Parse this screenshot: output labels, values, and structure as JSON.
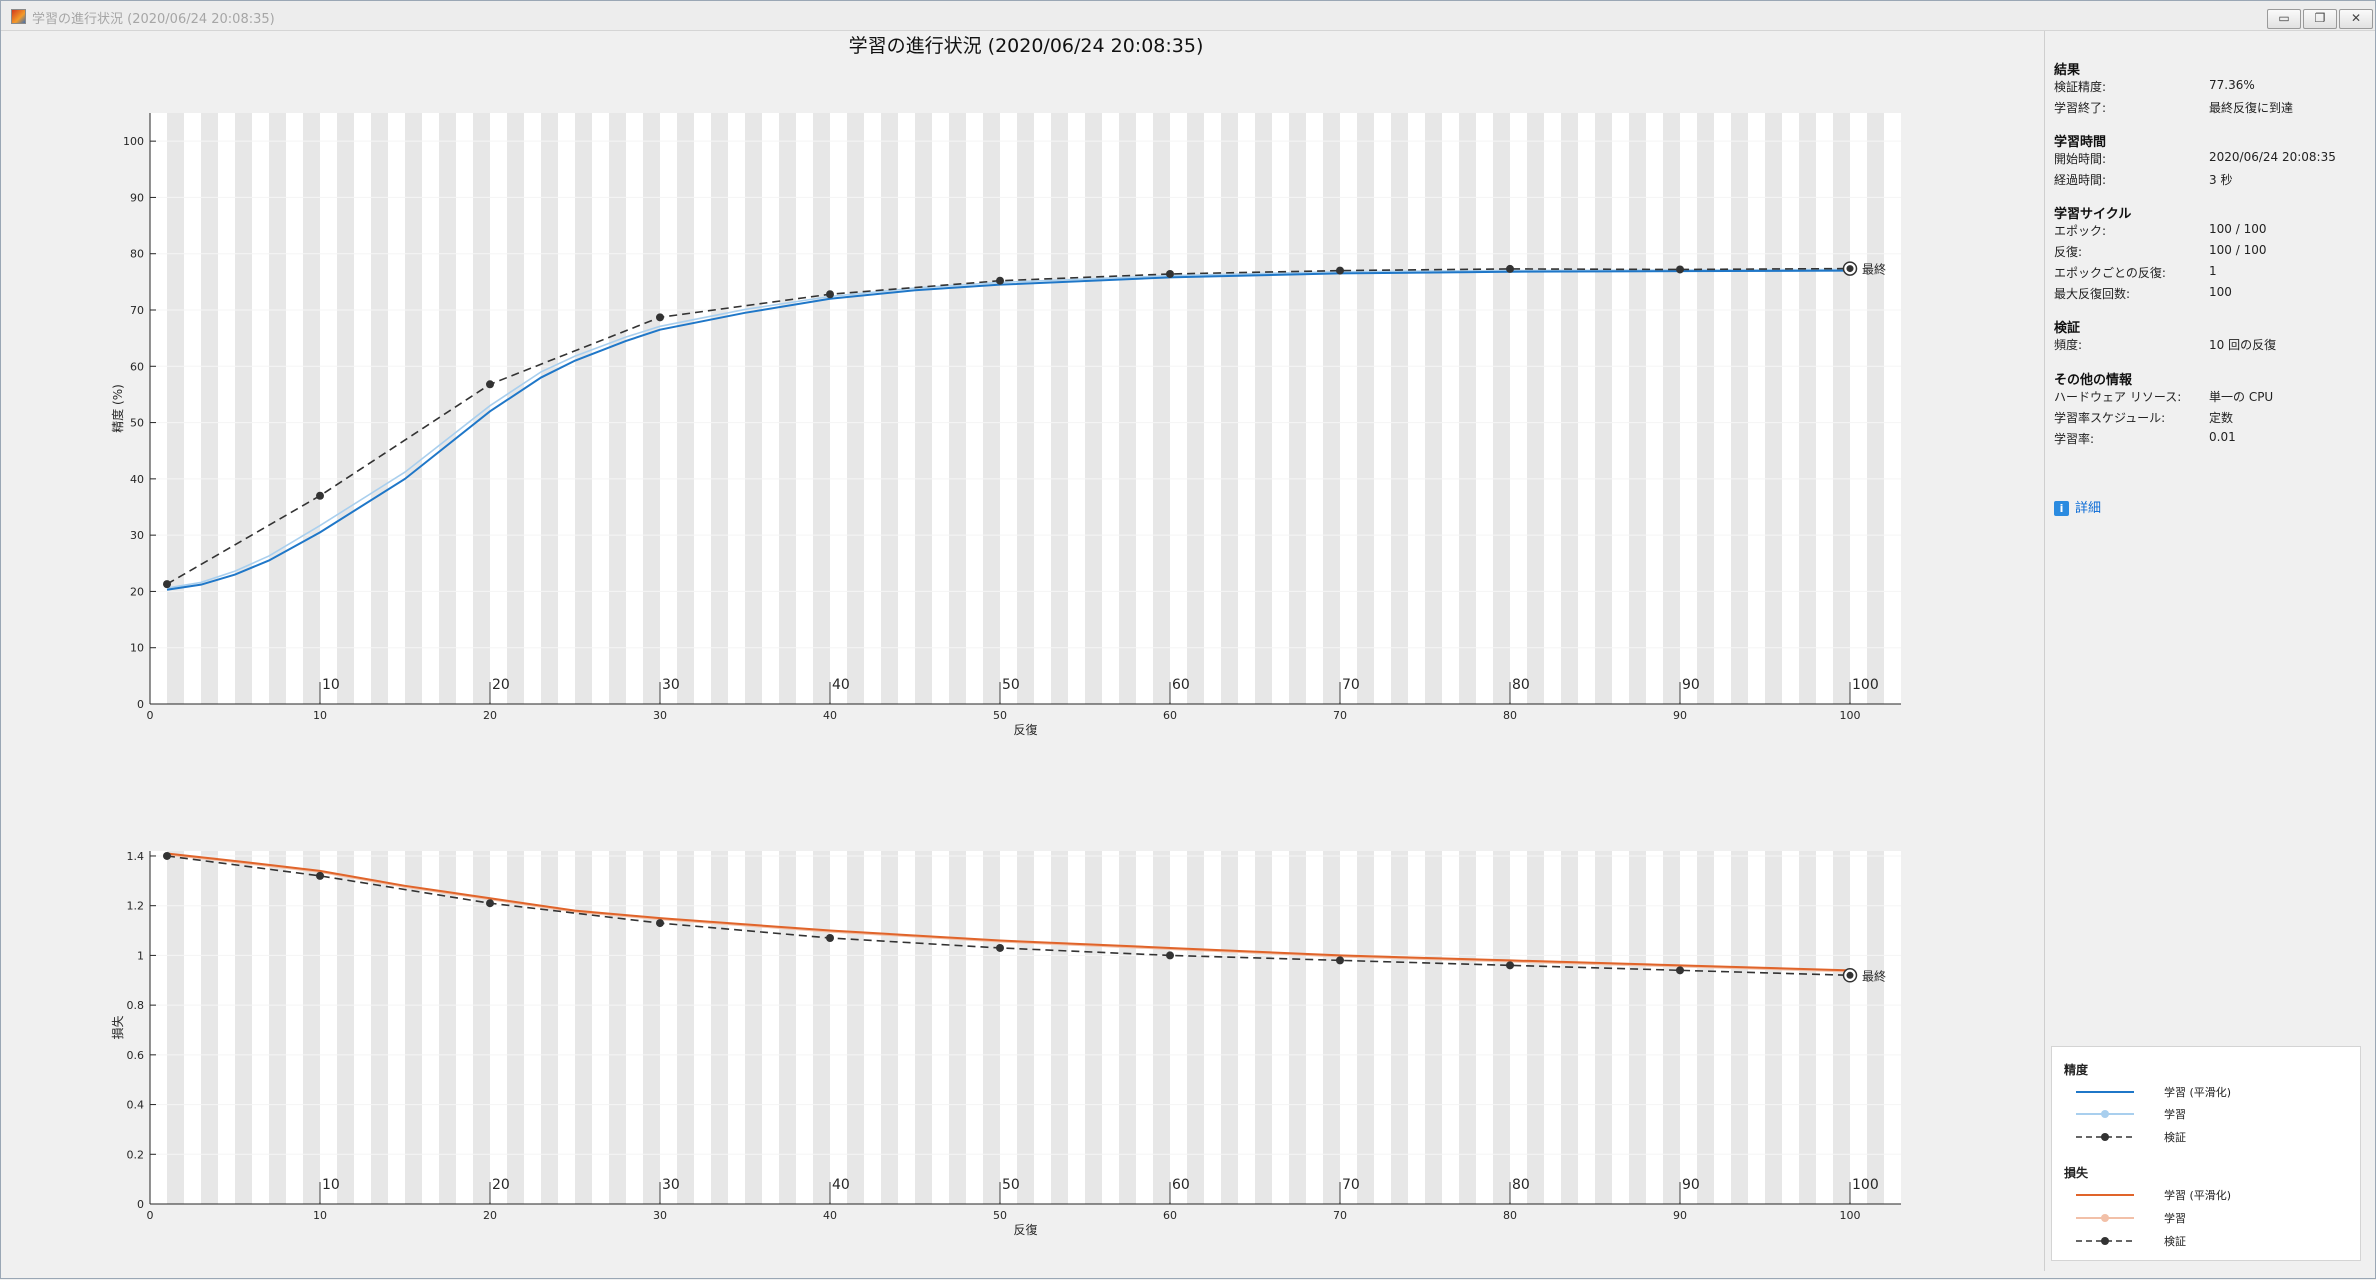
{
  "window": {
    "title": "学習の進行状況 (2020/06/24 20:08:35)",
    "buttons": [
      "▭",
      "❐",
      "✕"
    ]
  },
  "plot_title": "学習の進行状況 (2020/06/24 20:08:35)",
  "final_label": "最終",
  "accuracy_plot": {
    "ylabel": "精度 (%)",
    "xlabel": "反復",
    "yticks": [
      "0",
      "10",
      "20",
      "30",
      "40",
      "50",
      "60",
      "70",
      "80",
      "90",
      "100"
    ],
    "xticks": [
      "0",
      "10",
      "20",
      "30",
      "40",
      "50",
      "60",
      "70",
      "80",
      "90",
      "100"
    ],
    "epoch_labels": [
      "10",
      "20",
      "30",
      "40",
      "50",
      "60",
      "70",
      "80",
      "90",
      "100"
    ]
  },
  "loss_plot": {
    "ylabel": "損失",
    "xlabel": "反復",
    "yticks": [
      "0",
      "0.2",
      "0.4",
      "0.6",
      "0.8",
      "1",
      "1.2",
      "1.4"
    ],
    "xticks": [
      "0",
      "10",
      "20",
      "30",
      "40",
      "50",
      "60",
      "70",
      "80",
      "90",
      "100"
    ],
    "epoch_labels": [
      "10",
      "20",
      "30",
      "40",
      "50",
      "60",
      "70",
      "80",
      "90",
      "100"
    ]
  },
  "chart_data": [
    {
      "type": "line",
      "title": "",
      "xlabel": "反復",
      "ylabel": "精度 (%)",
      "xlim": [
        0,
        103
      ],
      "ylim": [
        0,
        105
      ],
      "grid": true,
      "series": [
        {
          "name": "学習 (平滑化)",
          "x": [
            1,
            3,
            5,
            7,
            10,
            15,
            20,
            23,
            25,
            28,
            30,
            35,
            40,
            45,
            50,
            60,
            70,
            80,
            90,
            100
          ],
          "y": [
            20.3,
            21.2,
            23,
            25.5,
            30.5,
            40,
            52,
            58,
            61,
            64.5,
            66.5,
            69.5,
            72,
            73.5,
            74.5,
            75.8,
            76.5,
            76.8,
            76.9,
            77
          ]
        },
        {
          "name": "学習",
          "x": [
            1,
            3,
            5,
            7,
            10,
            15,
            20,
            23,
            25,
            28,
            30,
            35,
            40,
            45,
            50,
            60,
            70,
            80,
            90,
            100
          ],
          "y": [
            20.6,
            21.6,
            23.6,
            26.3,
            31.7,
            41.2,
            53,
            59,
            61.8,
            65.2,
            67.1,
            70.1,
            72.4,
            73.9,
            74.9,
            76.1,
            76.8,
            77,
            77.1,
            77.2
          ]
        },
        {
          "name": "検証",
          "x": [
            1,
            10,
            20,
            30,
            40,
            50,
            60,
            70,
            80,
            90,
            100
          ],
          "y": [
            21.3,
            37,
            56.8,
            68.7,
            72.8,
            75.2,
            76.4,
            77,
            77.3,
            77.2,
            77.36
          ]
        }
      ]
    },
    {
      "type": "line",
      "title": "",
      "xlabel": "反復",
      "ylabel": "損失",
      "xlim": [
        0,
        103
      ],
      "ylim": [
        0,
        1.42
      ],
      "grid": true,
      "series": [
        {
          "name": "学習 (平滑化)",
          "x": [
            1,
            5,
            10,
            15,
            20,
            25,
            30,
            40,
            50,
            60,
            70,
            80,
            90,
            100
          ],
          "y": [
            1.41,
            1.38,
            1.34,
            1.28,
            1.23,
            1.18,
            1.15,
            1.1,
            1.06,
            1.03,
            1.0,
            0.98,
            0.96,
            0.94
          ]
        },
        {
          "name": "学習",
          "x": [
            1,
            5,
            10,
            15,
            20,
            25,
            30,
            40,
            50,
            60,
            70,
            80,
            90,
            100
          ],
          "y": [
            1.405,
            1.375,
            1.335,
            1.275,
            1.225,
            1.175,
            1.145,
            1.095,
            1.055,
            1.025,
            0.995,
            0.975,
            0.955,
            0.935
          ]
        },
        {
          "name": "検証",
          "x": [
            1,
            10,
            20,
            30,
            40,
            50,
            60,
            70,
            80,
            90,
            100
          ],
          "y": [
            1.4,
            1.32,
            1.21,
            1.13,
            1.07,
            1.03,
            1.0,
            0.98,
            0.96,
            0.94,
            0.92
          ]
        }
      ]
    }
  ],
  "side_panel": {
    "results": {
      "title": "結果",
      "rows": [
        {
          "k": "検証精度:",
          "v": "77.36%"
        },
        {
          "k": "学習終了:",
          "v": "最終反復に到達"
        }
      ]
    },
    "time": {
      "title": "学習時間",
      "rows": [
        {
          "k": "開始時間:",
          "v": "2020/06/24 20:08:35"
        },
        {
          "k": "経過時間:",
          "v": "3 秒"
        }
      ]
    },
    "cycle": {
      "title": "学習サイクル",
      "rows": [
        {
          "k": "エポック:",
          "v": "100 / 100"
        },
        {
          "k": "反復:",
          "v": "100 / 100"
        },
        {
          "k": "エポックごとの反復:",
          "v": "1"
        },
        {
          "k": "最大反復回数:",
          "v": "100"
        }
      ]
    },
    "validation": {
      "title": "検証",
      "rows": [
        {
          "k": "頻度:",
          "v": "10 回の反復"
        }
      ]
    },
    "other": {
      "title": "その他の情報",
      "rows": [
        {
          "k": "ハードウェア リソース:",
          "v": "単一の CPU"
        },
        {
          "k": "学習率スケジュール:",
          "v": "定数"
        },
        {
          "k": "学習率:",
          "v": "0.01"
        }
      ]
    },
    "detail_link": "詳細",
    "detail_icon": "i"
  },
  "legend": {
    "accuracy_title": "精度",
    "loss_title": "損失",
    "items": [
      "学習 (平滑化)",
      "学習",
      "検証"
    ],
    "colors": {
      "acc_smooth": "#1f77c8",
      "acc_train": "#a9cfee",
      "loss_smooth": "#e0642a",
      "loss_train": "#f2c0a8",
      "validation": "#333333"
    }
  }
}
